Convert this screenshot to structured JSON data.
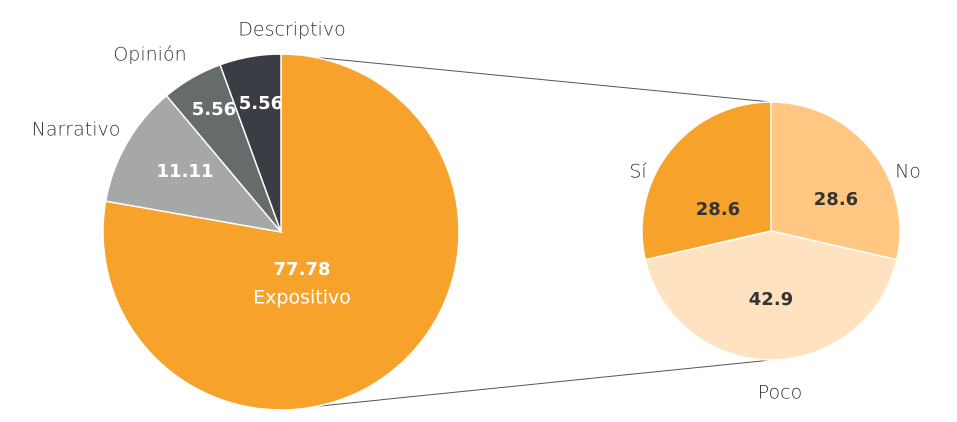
{
  "chart_data": [
    {
      "type": "pie",
      "categories": [
        "Expositivo",
        "Narrativo",
        "Opinión",
        "Descriptivo"
      ],
      "values": [
        77.78,
        11.11,
        5.56,
        5.56
      ],
      "colors": [
        "#f7a22b",
        "#a5a8a6",
        "#666b6b",
        "#3b3d45"
      ]
    },
    {
      "type": "pie",
      "categories": [
        "No",
        "Poco",
        "Sí"
      ],
      "values": [
        28.6,
        42.9,
        28.6
      ],
      "colors": [
        "#ffc781",
        "#ffe3c0",
        "#f7a22b"
      ]
    }
  ]
}
